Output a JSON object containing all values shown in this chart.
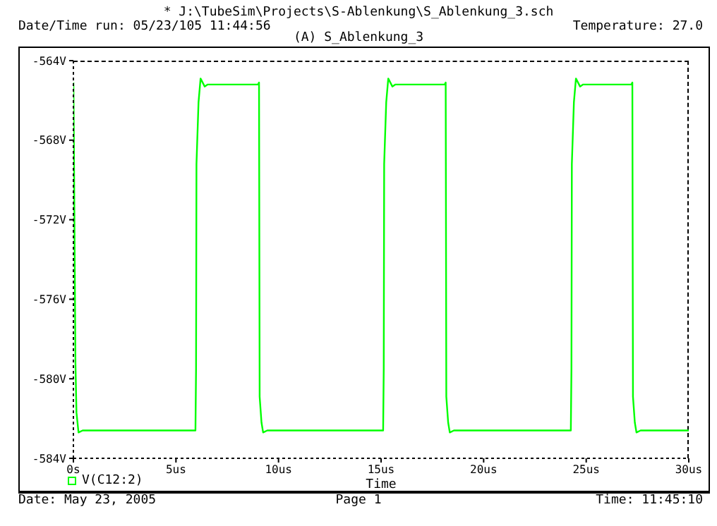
{
  "chart_data": {
    "type": "line",
    "title": "(A) S_Ablenkung_3",
    "xlabel": "Time",
    "annotations": [
      "* J:\\TubeSim\\Projects\\S-Ablenkung\\S_Ablenkung_3.sch",
      "Date/Time run: 05/23/105 11:44:56",
      "Temperature: 27.0",
      "Date: May 23, 2005",
      "Page 1",
      "Time: 11:45:10"
    ],
    "xlim": [
      0,
      30
    ],
    "xticks": [
      {
        "value": 0,
        "label": "0s"
      },
      {
        "value": 5,
        "label": "5us"
      },
      {
        "value": 10,
        "label": "10us"
      },
      {
        "value": 15,
        "label": "15us"
      },
      {
        "value": 20,
        "label": "20us"
      },
      {
        "value": 25,
        "label": "25us"
      },
      {
        "value": 30,
        "label": "30us"
      }
    ],
    "ylim": [
      -584,
      -564
    ],
    "yticks": [
      {
        "value": -584,
        "label": "-584V"
      },
      {
        "value": -580,
        "label": "-580V"
      },
      {
        "value": -576,
        "label": "-576V"
      },
      {
        "value": -572,
        "label": "-572V"
      },
      {
        "value": -568,
        "label": "-568V"
      },
      {
        "value": -564,
        "label": "-564V"
      }
    ],
    "grid": false,
    "legend": "bottom left",
    "marker": "none",
    "line_style": "solid",
    "series": [
      {
        "name": "V(C12:2)",
        "color": "#00ff00",
        "x": [
          0,
          0.03,
          0.1,
          0.15,
          0.25,
          0.45,
          5.95,
          5.98,
          6.0,
          6.1,
          6.2,
          6.4,
          6.55,
          9.0,
          9.05,
          9.08,
          9.17,
          9.25,
          9.45,
          15.1,
          15.13,
          15.15,
          15.25,
          15.35,
          15.55,
          15.7,
          18.1,
          18.15,
          18.18,
          18.27,
          18.35,
          18.55,
          24.25,
          24.28,
          24.3,
          24.4,
          24.5,
          24.7,
          24.85,
          27.2,
          27.25,
          27.28,
          27.37,
          27.45,
          27.65,
          30
        ],
        "values": [
          -565.1,
          -569,
          -579.2,
          -581.7,
          -582.7,
          -582.6,
          -582.6,
          -579.5,
          -569.2,
          -566.1,
          -564.9,
          -565.3,
          -565.2,
          -565.2,
          -565.1,
          -580.9,
          -582.2,
          -582.7,
          -582.6,
          -582.6,
          -579.5,
          -569.2,
          -566.1,
          -564.9,
          -565.3,
          -565.2,
          -565.2,
          -565.1,
          -580.9,
          -582.2,
          -582.7,
          -582.6,
          -582.6,
          -579.5,
          -569.2,
          -566.1,
          -564.9,
          -565.3,
          -565.2,
          -565.2,
          -565.1,
          -580.9,
          -582.2,
          -582.7,
          -582.6,
          -582.6
        ]
      }
    ]
  }
}
